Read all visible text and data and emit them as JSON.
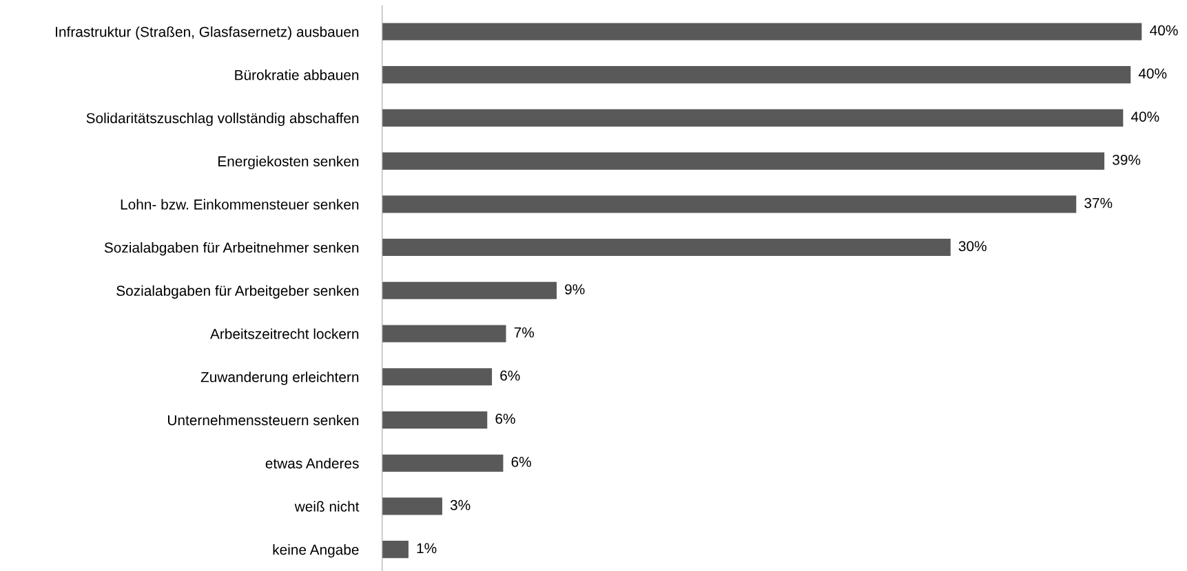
{
  "chart_data": {
    "type": "bar",
    "orientation": "horizontal",
    "categories": [
      "Infrastruktur (Straßen, Glasfasernetz) ausbauen",
      "Bürokratie abbauen",
      "Solidaritätszuschlag vollständig abschaffen",
      "Energiekosten senken",
      "Lohn- bzw. Einkommensteuer senken",
      "Sozialabgaben für Arbeitnehmer senken",
      "Sozialabgaben für Arbeitgeber senken",
      "Arbeitszeitrecht lockern",
      "Zuwanderung erleichtern",
      "Unternehmenssteuern senken",
      "etwas Anderes",
      "weiß nicht",
      "keine Angabe"
    ],
    "values": [
      40.5,
      39.9,
      39.5,
      38.5,
      37.0,
      30.3,
      9.3,
      6.6,
      5.85,
      5.6,
      6.45,
      3.2,
      1.4
    ],
    "value_labels": [
      "40%",
      "40%",
      "40%",
      "39%",
      "37%",
      "30%",
      "9%",
      "7%",
      "6%",
      "6%",
      "6%",
      "3%",
      "1%"
    ],
    "color": "#595959",
    "tick_labels": "y",
    "grid": false,
    "legend": false
  }
}
